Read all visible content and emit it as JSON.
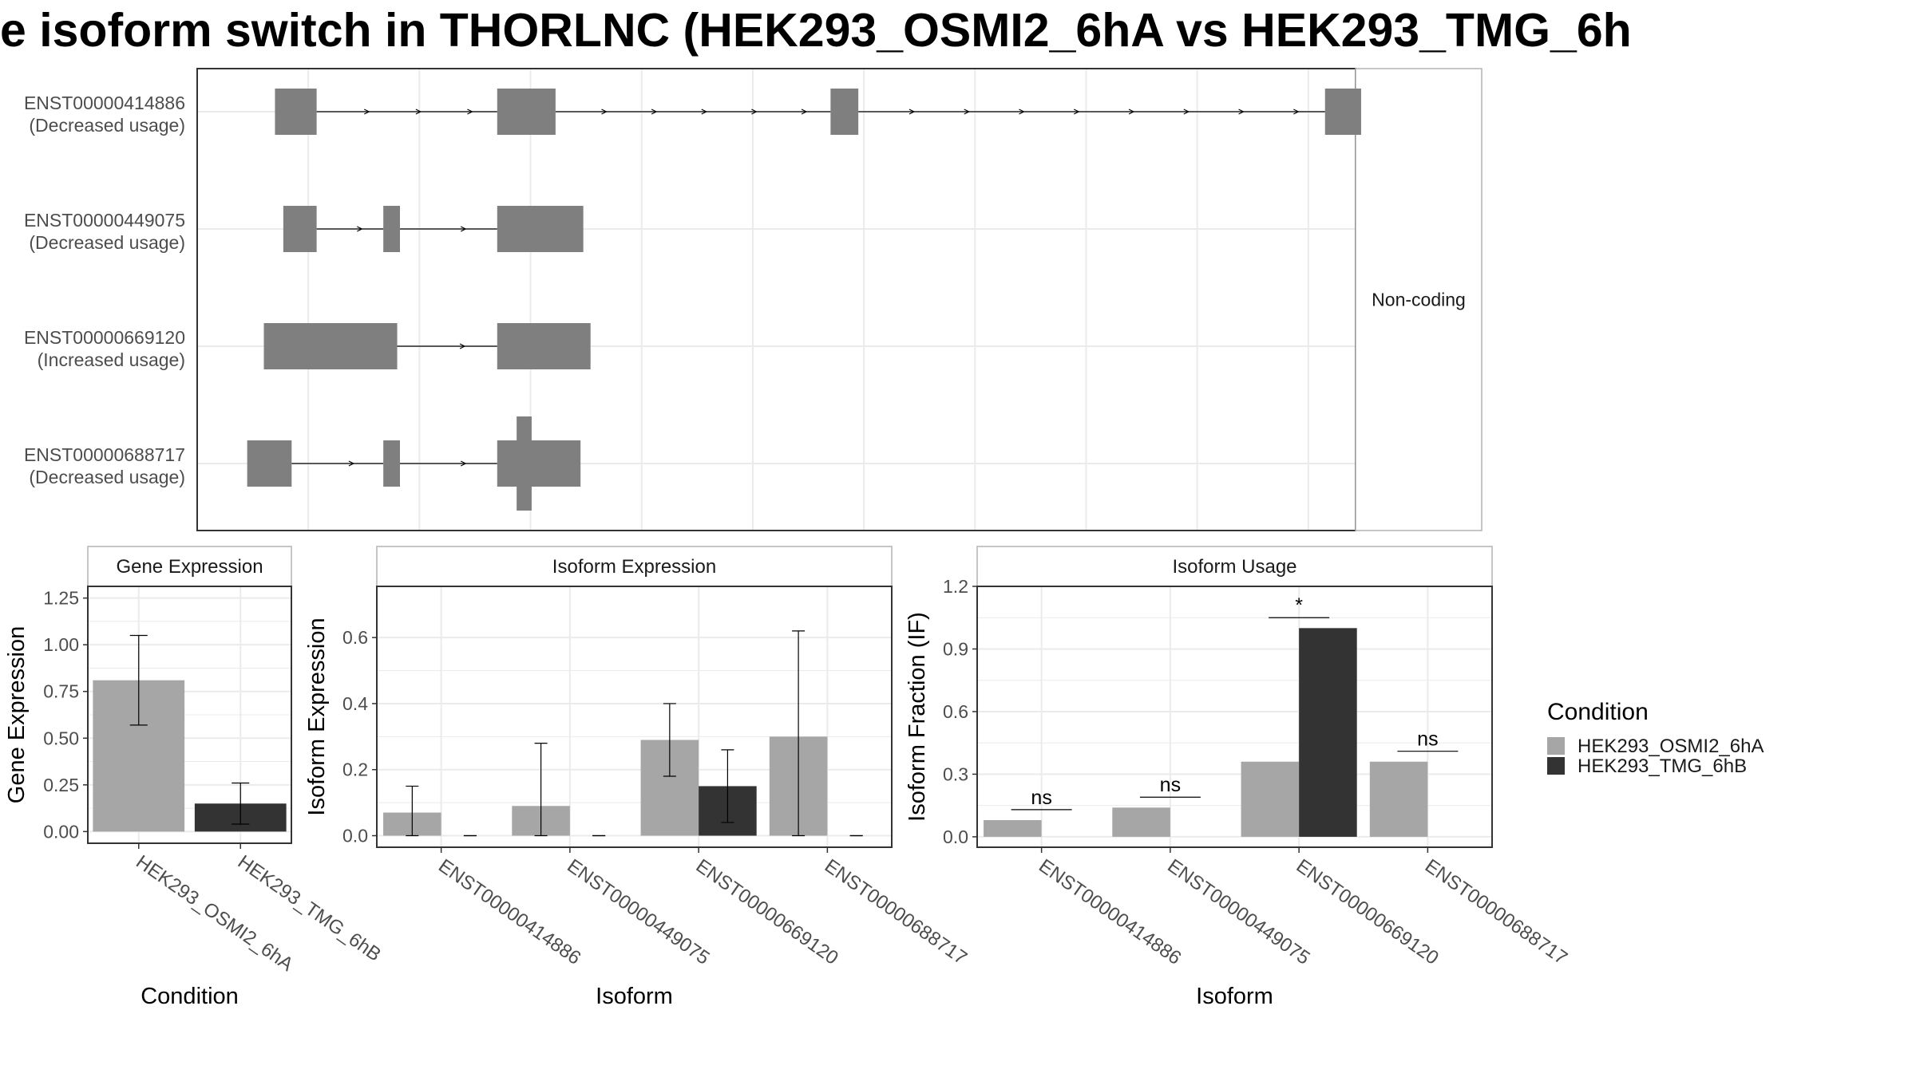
{
  "title": "e isoform switch in THORLNC (HEK293_OSMI2_6hA vs HEK293_TMG_6h",
  "colors": {
    "condition_a": "#a6a6a6",
    "condition_b": "#333333",
    "exon": "#7f7f7f",
    "grid": "#ebebeb",
    "panel_border": "#333333",
    "strip_border": "#b3b3b3",
    "text": "#4d4d4d"
  },
  "legend": {
    "title": "Condition",
    "entries": [
      "HEK293_OSMI2_6hA",
      "HEK293_TMG_6hB"
    ],
    "position": "right"
  },
  "chart_data": [
    {
      "type": "gene-structure",
      "facet_label": "Non-coding",
      "transcripts": [
        {
          "name": "ENST00000414886",
          "status": "(Decreased usage)",
          "exons": [
            [
              3.0,
              3.75
            ],
            [
              7.0,
              8.05
            ],
            [
              13.0,
              13.5
            ],
            [
              21.9,
              22.55
            ]
          ],
          "cds": []
        },
        {
          "name": "ENST00000449075",
          "status": "(Decreased usage)",
          "exons": [
            [
              3.15,
              3.75
            ],
            [
              4.95,
              5.25
            ],
            [
              7.0,
              8.55
            ]
          ],
          "cds": []
        },
        {
          "name": "ENST00000669120",
          "status": "(Increased usage)",
          "exons": [
            [
              2.8,
              5.2
            ],
            [
              7.0,
              8.68
            ]
          ],
          "cds": []
        },
        {
          "name": "ENST00000688717",
          "status": "(Decreased usage)",
          "exons": [
            [
              2.5,
              3.3
            ],
            [
              4.95,
              5.25
            ],
            [
              7.0,
              8.5
            ]
          ],
          "cds": [
            [
              7.35,
              7.62
            ]
          ]
        }
      ],
      "xlim": [
        1.6,
        22.45
      ],
      "x_gridlines": [
        1.6,
        3.6,
        5.6,
        7.6,
        9.6,
        11.6,
        13.6,
        15.6,
        17.6,
        19.6,
        21.6
      ]
    },
    {
      "type": "bar",
      "facet_label": "Gene Expression",
      "xlabel": "Condition",
      "ylabel": "Gene Expression",
      "categories": [
        "HEK293_OSMI2_6hA",
        "HEK293_TMG_6hB"
      ],
      "values": [
        0.81,
        0.15
      ],
      "errors": [
        [
          0.57,
          1.05
        ],
        [
          0.04,
          0.26
        ]
      ],
      "ylim": [
        -0.0625,
        1.3125
      ],
      "yticks": [
        "0.00",
        "0.25",
        "0.50",
        "0.75",
        "1.00",
        "1.25"
      ],
      "grid": true
    },
    {
      "type": "bar",
      "facet_label": "Isoform Expression",
      "xlabel": "Isoform",
      "ylabel": "Isoform Expression",
      "categories": [
        "ENST00000414886",
        "ENST00000449075",
        "ENST00000669120",
        "ENST00000688717"
      ],
      "series": [
        {
          "name": "HEK293_OSMI2_6hA",
          "values": [
            0.07,
            0.09,
            0.29,
            0.3
          ],
          "errors": [
            [
              0.0,
              0.15
            ],
            [
              0.0,
              0.28
            ],
            [
              0.18,
              0.4
            ],
            [
              0.0,
              0.62
            ]
          ]
        },
        {
          "name": "HEK293_TMG_6hB",
          "values": [
            0.0,
            0.0,
            0.15,
            0.0
          ],
          "errors": [
            [
              0.0,
              0.0
            ],
            [
              0.0,
              0.0
            ],
            [
              0.04,
              0.26
            ],
            [
              0.0,
              0.0
            ]
          ]
        }
      ],
      "ylim": [
        -0.035,
        0.755
      ],
      "yticks": [
        "0.0",
        "0.2",
        "0.4",
        "0.6"
      ],
      "grid": true
    },
    {
      "type": "bar",
      "facet_label": "Isoform Usage",
      "xlabel": "Isoform",
      "ylabel": "Isoform Fraction (IF)",
      "categories": [
        "ENST00000414886",
        "ENST00000449075",
        "ENST00000669120",
        "ENST00000688717"
      ],
      "series": [
        {
          "name": "HEK293_OSMI2_6hA",
          "values": [
            0.08,
            0.14,
            0.36,
            0.36
          ]
        },
        {
          "name": "HEK293_TMG_6hB",
          "values": [
            0.0,
            0.0,
            1.0,
            0.0
          ]
        }
      ],
      "significance": [
        {
          "label": "ns",
          "y": 0.13
        },
        {
          "label": "ns",
          "y": 0.19
        },
        {
          "label": "*",
          "y": 1.05
        },
        {
          "label": "ns",
          "y": 0.41
        }
      ],
      "ylim": [
        -0.05,
        1.2
      ],
      "yticks": [
        "0.0",
        "0.3",
        "0.6",
        "0.9",
        "1.2"
      ],
      "grid": true
    }
  ]
}
